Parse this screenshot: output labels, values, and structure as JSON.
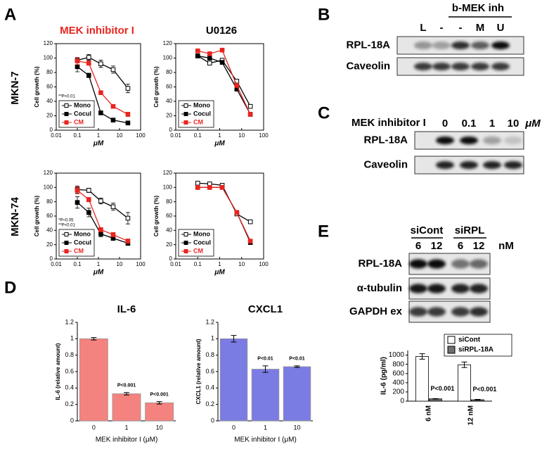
{
  "panel_labels": [
    "A",
    "B",
    "C",
    "D",
    "E"
  ],
  "panel_a": {
    "column_titles": [
      "MEK inhibitor I",
      "U0126"
    ],
    "row_labels": [
      "MKN-7",
      "MKN-74"
    ]
  },
  "blot_b": {
    "header": "b-MEK inh",
    "lanes": [
      "L",
      "-",
      "-",
      "M",
      "U"
    ],
    "rows": [
      "RPL-18A",
      "Caveolin"
    ]
  },
  "blot_c": {
    "header": "MEK inhibitor I",
    "lanes": [
      "0",
      "0.1",
      "1",
      "10"
    ],
    "unit": "μM",
    "rows": [
      "RPL-18A",
      "Caveolin"
    ]
  },
  "blot_e": {
    "groups": [
      "siCont",
      "siRPL"
    ],
    "lanes": [
      "6",
      "12",
      "6",
      "12"
    ],
    "unit": "nM",
    "rows": [
      "RPL-18A",
      "α-tubulin",
      "GAPDH ex"
    ]
  },
  "chart_data": [
    {
      "type": "line",
      "log_x": true,
      "x": [
        0.1,
        0.35,
        1.3,
        5,
        25
      ],
      "xlim": [
        0.01,
        100
      ],
      "xticks": [
        0.01,
        0.1,
        1,
        10,
        100
      ],
      "ylim": [
        0,
        120
      ],
      "yticks": [
        0,
        20,
        40,
        60,
        80,
        100,
        120
      ],
      "xlabel": "μM",
      "ylabel": "Cell growth (%)",
      "legend": "lower left",
      "annotations": [
        "**P<0.01"
      ],
      "series": [
        {
          "name": "Mono",
          "color": "#000000",
          "marker_fill": "#ffffff",
          "values": [
            97,
            101,
            92,
            84,
            58
          ],
          "errors": [
            3,
            4,
            5,
            5,
            6
          ]
        },
        {
          "name": "Cocul",
          "color": "#000000",
          "marker_fill": "#000000",
          "values": [
            88,
            76,
            24,
            14,
            10
          ],
          "errors": [
            7,
            3,
            2,
            1,
            1
          ]
        },
        {
          "name": "CM",
          "color": "#e8251f",
          "marker_fill": "#e8251f",
          "values": [
            96,
            93,
            52,
            33,
            22
          ],
          "errors": [
            5,
            3,
            2,
            2,
            3
          ]
        }
      ]
    },
    {
      "type": "line",
      "log_x": true,
      "x": [
        0.1,
        0.35,
        1.3,
        6,
        25
      ],
      "xlim": [
        0.01,
        100
      ],
      "xticks": [
        0.01,
        0.1,
        1,
        10,
        100
      ],
      "ylim": [
        0,
        120
      ],
      "yticks": [
        0,
        20,
        40,
        60,
        80,
        100,
        120
      ],
      "xlabel": "μM",
      "ylabel": "Cell growth (%)",
      "legend": "lower left",
      "series": [
        {
          "name": "Mono",
          "color": "#000000",
          "marker_fill": "#ffffff",
          "values": [
            103,
            93,
            97,
            68,
            33
          ]
        },
        {
          "name": "Cocul",
          "color": "#000000",
          "marker_fill": "#000000",
          "values": [
            103,
            100,
            94,
            57,
            22
          ]
        },
        {
          "name": "CM",
          "color": "#e8251f",
          "marker_fill": "#e8251f",
          "values": [
            110,
            106,
            111,
            62,
            22
          ]
        }
      ]
    },
    {
      "type": "line",
      "log_x": true,
      "x": [
        0.1,
        0.35,
        1.3,
        5,
        25
      ],
      "xlim": [
        0.01,
        100
      ],
      "xticks": [
        0.01,
        0.1,
        1,
        10,
        100
      ],
      "ylim": [
        0,
        120
      ],
      "yticks": [
        0,
        20,
        40,
        60,
        80,
        100,
        120
      ],
      "xlabel": "μM",
      "ylabel": "Cell growth (%)",
      "legend": "lower left",
      "annotations": [
        "*P<0.05",
        "**P<0.01"
      ],
      "series": [
        {
          "name": "Mono",
          "color": "#000000",
          "marker_fill": "#ffffff",
          "values": [
            97,
            96,
            81,
            73,
            57
          ],
          "errors": [
            5,
            3,
            4,
            5,
            8
          ]
        },
        {
          "name": "Cocul",
          "color": "#000000",
          "marker_fill": "#000000",
          "values": [
            79,
            65,
            35,
            29,
            22
          ],
          "errors": [
            8,
            6,
            4,
            3,
            3
          ]
        },
        {
          "name": "CM",
          "color": "#e8251f",
          "marker_fill": "#e8251f",
          "values": [
            96,
            83,
            41,
            34,
            25
          ],
          "errors": [
            5,
            3,
            3,
            3,
            3
          ]
        }
      ]
    },
    {
      "type": "line",
      "log_x": true,
      "x": [
        0.1,
        0.35,
        1.3,
        6,
        25
      ],
      "xlim": [
        0.01,
        100
      ],
      "xticks": [
        0.01,
        0.1,
        1,
        10,
        100
      ],
      "ylim": [
        0,
        120
      ],
      "yticks": [
        0,
        20,
        40,
        60,
        80,
        100,
        120
      ],
      "xlabel": "μM",
      "ylabel": "Cell growth (%)",
      "legend": "lower left",
      "series": [
        {
          "name": "Mono",
          "color": "#000000",
          "marker_fill": "#ffffff",
          "values": [
            106,
            105,
            103,
            63,
            52
          ]
        },
        {
          "name": "Cocul",
          "color": "#000000",
          "marker_fill": "#000000",
          "values": [
            100,
            100,
            100,
            65,
            23
          ]
        },
        {
          "name": "CM",
          "color": "#e8251f",
          "marker_fill": "#e8251f",
          "values": [
            100,
            100,
            100,
            65,
            25
          ]
        }
      ]
    },
    {
      "type": "bar",
      "title": "IL-6",
      "categories": [
        "0",
        "1",
        "10"
      ],
      "values": [
        1.0,
        0.33,
        0.22
      ],
      "errors": [
        0.015,
        0.015,
        0.015
      ],
      "value_annotations": [
        null,
        "P<0.001",
        "P<0.001"
      ],
      "color": "#f4827e",
      "ylim": [
        0,
        1.2
      ],
      "yticks": [
        0,
        0.2,
        0.4,
        0.6,
        0.8,
        1,
        1.2
      ],
      "xlabel": "MEK inhibitor I (μM)",
      "ylabel": "IL-6 (relative amount)"
    },
    {
      "type": "bar",
      "title": "CXCL1",
      "categories": [
        "0",
        "1",
        "10"
      ],
      "values": [
        1.0,
        0.63,
        0.66
      ],
      "errors": [
        0.04,
        0.04,
        0.01
      ],
      "value_annotations": [
        null,
        "P<0.01",
        "P<0.01"
      ],
      "color": "#7b7be4",
      "ylim": [
        0,
        1.2
      ],
      "yticks": [
        0,
        0.2,
        0.4,
        0.6,
        0.8,
        1,
        1.2
      ],
      "xlabel": "MEK inhibitor I (μM)",
      "ylabel": "CXCL1 (relative amount)"
    },
    {
      "type": "bar",
      "categories": [
        "6 nM",
        "12 nM"
      ],
      "ylim": [
        0,
        1100
      ],
      "yticks": [
        0,
        200,
        400,
        600,
        800,
        1000
      ],
      "ylabel": "IL-6 (pg/ml)",
      "legend": "upper right",
      "series": [
        {
          "name": "siCont",
          "color": "#ffffff",
          "values": [
            970,
            790
          ],
          "errors": [
            60,
            60
          ],
          "value_annotations": [
            null,
            null
          ]
        },
        {
          "name": "siRPL-18A",
          "color": "#707070",
          "values": [
            50,
            30
          ],
          "errors": [
            5,
            8
          ],
          "value_annotations": [
            "P<0.001",
            "P<0.001"
          ]
        }
      ]
    }
  ]
}
